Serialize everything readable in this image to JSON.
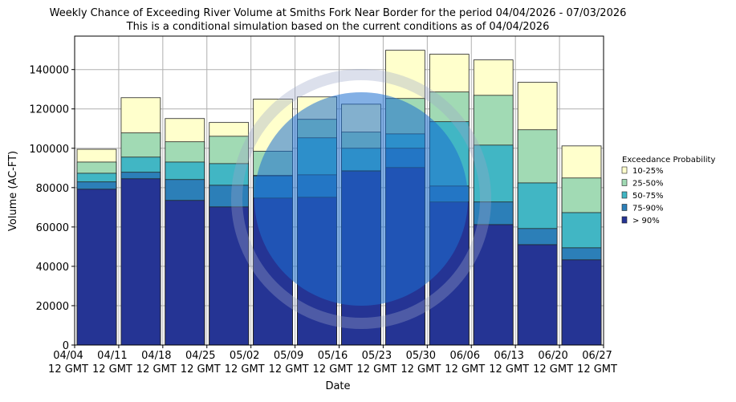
{
  "chart_data": {
    "type": "overlapping-bar",
    "title": "Weekly Chance of Exceeding River Volume at Smiths Fork Near Border for the period 04/04/2026 - 07/03/2026",
    "subtitle": "This is a conditional simulation based on the current conditions as of 04/04/2026",
    "y_label": "Volume (AC-FT)",
    "x_label": "Date",
    "legend_title": "Exceedance Probability",
    "xticks": [
      [
        "04/04",
        "12 GMT"
      ],
      [
        "04/11",
        "12 GMT"
      ],
      [
        "04/18",
        "12 GMT"
      ],
      [
        "04/25",
        "12 GMT"
      ],
      [
        "05/02",
        "12 GMT"
      ],
      [
        "05/09",
        "12 GMT"
      ],
      [
        "05/16",
        "12 GMT"
      ],
      [
        "05/23",
        "12 GMT"
      ],
      [
        "05/30",
        "12 GMT"
      ],
      [
        "06/06",
        "12 GMT"
      ],
      [
        "06/13",
        "12 GMT"
      ],
      [
        "06/20",
        "12 GMT"
      ],
      [
        "06/27",
        "12 GMT"
      ]
    ],
    "ylim": [
      0,
      157000
    ],
    "yticks": [
      0,
      20000,
      40000,
      60000,
      80000,
      100000,
      120000,
      140000
    ],
    "grid": true,
    "series": [
      {
        "name": "10-25%",
        "color": "#ffffcc",
        "values": [
          99500,
          125700,
          115100,
          113100,
          125000,
          126100,
          122400,
          149800,
          147800,
          144900,
          133500,
          101200
        ]
      },
      {
        "name": "25-50%",
        "color": "#a1dab4",
        "values": [
          93000,
          107800,
          103300,
          106100,
          98500,
          114700,
          108200,
          125300,
          128600,
          126900,
          109400,
          84900
        ]
      },
      {
        "name": "50-75%",
        "color": "#41b6c4",
        "values": [
          87300,
          95500,
          93000,
          92200,
          86200,
          105300,
          100000,
          107300,
          113500,
          101600,
          82400,
          67300
        ]
      },
      {
        "name": "75-90%",
        "color": "#2c7fb8",
        "values": [
          82900,
          87800,
          84100,
          81200,
          86000,
          86500,
          88600,
          100000,
          80800,
          72700,
          59200,
          49400
        ]
      },
      {
        "name": "> 90%",
        "color": "#253494",
        "values": [
          79200,
          84500,
          73500,
          70200,
          74700,
          75100,
          88300,
          90200,
          72700,
          61200,
          51000,
          43300
        ]
      }
    ]
  }
}
